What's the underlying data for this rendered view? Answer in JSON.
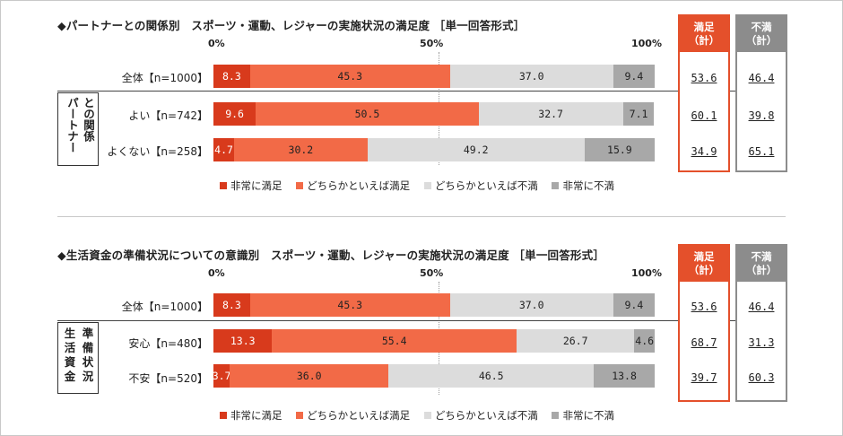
{
  "colors": {
    "very_satisfied": "#d83a1c",
    "somewhat_satisfied": "#f26a47",
    "somewhat_dissatisfied": "#dcdcdc",
    "very_dissatisfied": "#a8a8a8",
    "sat_box": "#e4502b",
    "dis_box": "#8c8c8c"
  },
  "legend": [
    "非常に満足",
    "どちらかといえば満足",
    "どちらかといえば不満",
    "非常に不満"
  ],
  "sum_headers": {
    "sat_line1": "満足",
    "sat_line2": "（計）",
    "dis_line1": "不満",
    "dis_line2": "（計）"
  },
  "chart_data": [
    {
      "type": "bar",
      "orientation": "horizontal-stacked-100",
      "title": "◆パートナーとの関係別　スポーツ・運動、レジャーの実施状況の満足度 ［単一回答形式］",
      "axis_ticks": [
        "0%",
        "50%",
        "100%"
      ],
      "xlim": [
        0,
        100
      ],
      "group_label_cols": [
        "パートナー",
        "との関係"
      ],
      "group_label": "パートナーとの関係",
      "categories": [
        "全体【n=1000】",
        "よい【n=742】",
        "よくない【n=258】"
      ],
      "series": [
        {
          "name": "非常に満足",
          "values": [
            8.3,
            9.6,
            4.7
          ]
        },
        {
          "name": "どちらかといえば満足",
          "values": [
            45.3,
            50.5,
            30.2
          ]
        },
        {
          "name": "どちらかといえば不満",
          "values": [
            37.0,
            32.7,
            49.2
          ]
        },
        {
          "name": "非常に不満",
          "values": [
            9.4,
            7.1,
            15.9
          ]
        }
      ],
      "satisfied_total": [
        "53.6",
        "60.1",
        "34.9"
      ],
      "dissatisfied_total": [
        "46.4",
        "39.8",
        "65.1"
      ]
    },
    {
      "type": "bar",
      "orientation": "horizontal-stacked-100",
      "title": "◆生活資金の準備状況についての意識別　スポーツ・運動、レジャーの実施状況の満足度 ［単一回答形式］",
      "axis_ticks": [
        "0%",
        "50%",
        "100%"
      ],
      "xlim": [
        0,
        100
      ],
      "group_label_grid": [
        "生",
        "準",
        "活",
        "備",
        "資",
        "状",
        "金",
        "況"
      ],
      "group_label": "生活資金準備状況",
      "categories": [
        "全体【n=1000】",
        "安心【n=480】",
        "不安【n=520】"
      ],
      "series": [
        {
          "name": "非常に満足",
          "values": [
            8.3,
            13.3,
            3.7
          ]
        },
        {
          "name": "どちらかといえば満足",
          "values": [
            45.3,
            55.4,
            36.0
          ]
        },
        {
          "name": "どちらかといえば不満",
          "values": [
            37.0,
            26.7,
            46.5
          ]
        },
        {
          "name": "非常に不満",
          "values": [
            9.4,
            4.6,
            13.8
          ]
        }
      ],
      "satisfied_total": [
        "53.6",
        "68.7",
        "39.7"
      ],
      "dissatisfied_total": [
        "46.4",
        "31.3",
        "60.3"
      ]
    }
  ]
}
